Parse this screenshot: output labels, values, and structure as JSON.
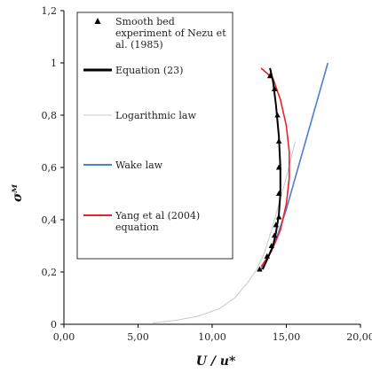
{
  "chart_data": {
    "type": "line",
    "xlabel": "U / u*",
    "ylabel": "σᴹ",
    "xlim": [
      0,
      20
    ],
    "ylim": [
      0,
      1.2
    ],
    "x_ticks": [
      "0,00",
      "5,00",
      "10,00",
      "15,00",
      "20,00"
    ],
    "y_ticks": [
      "0",
      "0,2",
      "0,4",
      "0,6",
      "0,8",
      "1",
      "1,2"
    ],
    "grid": false,
    "legend_position": "top-left inside",
    "legend": [
      {
        "label": "Smooth bed experiment of Nezu et al. (1985)",
        "lines": [
          "Smooth bed",
          "experiment of Nezu et",
          "al. (1985)"
        ],
        "marker": "triangle",
        "color": "#000000"
      },
      {
        "label": "Equation (23)",
        "lines": [
          "Equation (23)"
        ],
        "marker": "line",
        "color": "#000000"
      },
      {
        "label": "Logarithmic law",
        "lines": [
          "Logarithmic law"
        ],
        "marker": "line",
        "color": "#c8c8c8"
      },
      {
        "label": "Wake law",
        "lines": [
          "Wake law"
        ],
        "marker": "line",
        "color": "#4a7fd0"
      },
      {
        "label": "Yang et al (2004) equation",
        "lines": [
          "Yang et al (2004)",
          "equation"
        ],
        "marker": "line",
        "color": "#e8222b"
      }
    ],
    "series": [
      {
        "style": "markers",
        "color": "#000000",
        "x": [
          13.2,
          13.7,
          14.0,
          14.2,
          14.3,
          14.5,
          14.5,
          14.5,
          14.5,
          14.4,
          14.2,
          13.9
        ],
        "y": [
          0.21,
          0.26,
          0.3,
          0.34,
          0.38,
          0.41,
          0.5,
          0.6,
          0.7,
          0.8,
          0.9,
          0.95
        ]
      },
      {
        "style": "line",
        "color": "#000000",
        "x": [
          13.4,
          13.8,
          14.1,
          14.3,
          14.5,
          14.6,
          14.6,
          14.5,
          14.3,
          14.1,
          13.9
        ],
        "y": [
          0.21,
          0.26,
          0.3,
          0.35,
          0.42,
          0.5,
          0.6,
          0.72,
          0.84,
          0.93,
          0.98
        ]
      },
      {
        "style": "line",
        "color": "#c8c8c8",
        "x": [
          6.0,
          7.5,
          9.0,
          10.5,
          11.5,
          12.4,
          13.0,
          13.5,
          14.0,
          14.5,
          15.0,
          15.6
        ],
        "y": [
          0.005,
          0.015,
          0.03,
          0.06,
          0.1,
          0.16,
          0.21,
          0.27,
          0.36,
          0.46,
          0.56,
          0.7
        ]
      },
      {
        "style": "line",
        "color": "#4a7fd0",
        "x": [
          13.3,
          13.8,
          14.4,
          15.0,
          15.6,
          16.3,
          17.1,
          17.8
        ],
        "y": [
          0.21,
          0.26,
          0.34,
          0.44,
          0.56,
          0.7,
          0.86,
          1.0
        ]
      },
      {
        "style": "line",
        "color": "#e8222b",
        "x": [
          13.3,
          14.0,
          14.6,
          15.0,
          15.2,
          15.2,
          15.0,
          14.6,
          14.1,
          13.3
        ],
        "y": [
          0.22,
          0.28,
          0.36,
          0.46,
          0.56,
          0.66,
          0.76,
          0.86,
          0.94,
          0.98
        ]
      }
    ]
  }
}
